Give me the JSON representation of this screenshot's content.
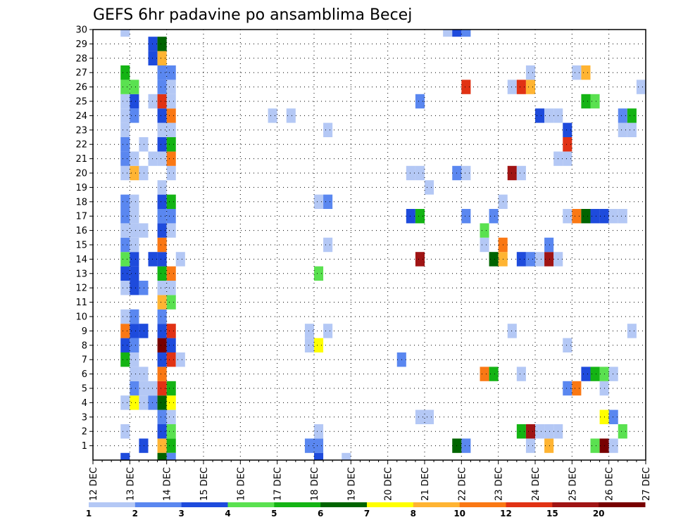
{
  "chart_data": {
    "type": "heatmap",
    "title": "GEFS 6hr padavine po ansamblima Becej",
    "xlabel": "",
    "ylabel": "",
    "x_start": "12 DEC",
    "x_end": "27 DEC",
    "x_ticks": [
      "12 DEC",
      "13 DEC",
      "14 DEC",
      "15 DEC",
      "16 DEC",
      "17 DEC",
      "18 DEC",
      "19 DEC",
      "20 DEC",
      "21 DEC",
      "22 DEC",
      "23 DEC",
      "24 DEC",
      "25 DEC",
      "26 DEC",
      "27 DEC"
    ],
    "y_ticks": [
      "1",
      "2",
      "3",
      "4",
      "5",
      "6",
      "7",
      "8",
      "9",
      "10",
      "11",
      "12",
      "13",
      "14",
      "15",
      "16",
      "17",
      "18",
      "19",
      "20",
      "21",
      "22",
      "23",
      "24",
      "25",
      "26",
      "27",
      "28",
      "29",
      "30"
    ],
    "ylim": [
      0,
      30
    ],
    "grid": true,
    "legend": {
      "placement": "bottom",
      "labels": [
        "1",
        "2",
        "3",
        "4",
        "5",
        "6",
        "7",
        "8",
        "10",
        "12",
        "15",
        "20"
      ],
      "colors": [
        "#b4c8f5",
        "#5a87f0",
        "#1e4bdc",
        "#5ae150",
        "#14b414",
        "#006400",
        "#ffff00",
        "#ffb432",
        "#fa7814",
        "#e13214",
        "#a01414",
        "#780000"
      ]
    },
    "cells": [
      {
        "day": 13.25,
        "member": 1,
        "level": 3
      },
      {
        "day": 13.75,
        "member": 1,
        "level": 8
      },
      {
        "day": 14,
        "member": 1,
        "level": 5
      },
      {
        "day": 17.75,
        "member": 1,
        "level": 2
      },
      {
        "day": 18,
        "member": 1,
        "level": 2
      },
      {
        "day": 21.75,
        "member": 1,
        "level": 6
      },
      {
        "day": 22,
        "member": 1,
        "level": 2
      },
      {
        "day": 23.75,
        "member": 1,
        "level": 1
      },
      {
        "day": 24.25,
        "member": 1,
        "level": 8
      },
      {
        "day": 25.5,
        "member": 1,
        "level": 4
      },
      {
        "day": 25.75,
        "member": 1,
        "level": 20
      },
      {
        "day": 26,
        "member": 1,
        "level": 1
      },
      {
        "day": 12.75,
        "member": 2,
        "level": 1
      },
      {
        "day": 13.75,
        "member": 2,
        "level": 3
      },
      {
        "day": 14,
        "member": 2,
        "level": 4
      },
      {
        "day": 18,
        "member": 2,
        "level": 1
      },
      {
        "day": 23.5,
        "member": 2,
        "level": 5
      },
      {
        "day": 23.75,
        "member": 2,
        "level": 15
      },
      {
        "day": 24,
        "member": 2,
        "level": 1
      },
      {
        "day": 24.25,
        "member": 2,
        "level": 1
      },
      {
        "day": 24.5,
        "member": 2,
        "level": 1
      },
      {
        "day": 26.25,
        "member": 2,
        "level": 4
      },
      {
        "day": 13.75,
        "member": 3,
        "level": 2
      },
      {
        "day": 14,
        "member": 3,
        "level": 1
      },
      {
        "day": 20.75,
        "member": 3,
        "level": 1
      },
      {
        "day": 21,
        "member": 3,
        "level": 1
      },
      {
        "day": 25.75,
        "member": 3,
        "level": 7
      },
      {
        "day": 26,
        "member": 3,
        "level": 2
      },
      {
        "day": 12.75,
        "member": 4,
        "level": 1
      },
      {
        "day": 13,
        "member": 4,
        "level": 7
      },
      {
        "day": 13.25,
        "member": 4,
        "level": 1
      },
      {
        "day": 13.5,
        "member": 4,
        "level": 2
      },
      {
        "day": 13.75,
        "member": 4,
        "level": 6
      },
      {
        "day": 14,
        "member": 4,
        "level": 7
      },
      {
        "day": 13,
        "member": 5,
        "level": 2
      },
      {
        "day": 13.25,
        "member": 5,
        "level": 1
      },
      {
        "day": 13.5,
        "member": 5,
        "level": 1
      },
      {
        "day": 13.75,
        "member": 5,
        "level": 12
      },
      {
        "day": 14,
        "member": 5,
        "level": 5
      },
      {
        "day": 24.75,
        "member": 5,
        "level": 2
      },
      {
        "day": 25,
        "member": 5,
        "level": 10
      },
      {
        "day": 25.75,
        "member": 5,
        "level": 1
      },
      {
        "day": 13,
        "member": 6,
        "level": 1
      },
      {
        "day": 13.25,
        "member": 6,
        "level": 1
      },
      {
        "day": 13.75,
        "member": 6,
        "level": 10
      },
      {
        "day": 22.5,
        "member": 6,
        "level": 10
      },
      {
        "day": 22.75,
        "member": 6,
        "level": 5
      },
      {
        "day": 23.5,
        "member": 6,
        "level": 1
      },
      {
        "day": 25.25,
        "member": 6,
        "level": 3
      },
      {
        "day": 25.5,
        "member": 6,
        "level": 5
      },
      {
        "day": 25.75,
        "member": 6,
        "level": 4
      },
      {
        "day": 26,
        "member": 6,
        "level": 1
      },
      {
        "day": 12.75,
        "member": 7,
        "level": 5
      },
      {
        "day": 13,
        "member": 7,
        "level": 1
      },
      {
        "day": 13.75,
        "member": 7,
        "level": 3
      },
      {
        "day": 14,
        "member": 7,
        "level": 12
      },
      {
        "day": 14.25,
        "member": 7,
        "level": 1
      },
      {
        "day": 20.25,
        "member": 7,
        "level": 2
      },
      {
        "day": 12.75,
        "member": 8,
        "level": 3
      },
      {
        "day": 13,
        "member": 8,
        "level": 2
      },
      {
        "day": 13.75,
        "member": 8,
        "level": 20
      },
      {
        "day": 14,
        "member": 8,
        "level": 3
      },
      {
        "day": 17.75,
        "member": 8,
        "level": 1
      },
      {
        "day": 18,
        "member": 8,
        "level": 7
      },
      {
        "day": 24.75,
        "member": 8,
        "level": 1
      },
      {
        "day": 12.75,
        "member": 9,
        "level": 10
      },
      {
        "day": 13,
        "member": 9,
        "level": 3
      },
      {
        "day": 13.25,
        "member": 9,
        "level": 3
      },
      {
        "day": 13.75,
        "member": 9,
        "level": 3
      },
      {
        "day": 14,
        "member": 9,
        "level": 12
      },
      {
        "day": 17.75,
        "member": 9,
        "level": 1
      },
      {
        "day": 18.25,
        "member": 9,
        "level": 1
      },
      {
        "day": 23.25,
        "member": 9,
        "level": 1
      },
      {
        "day": 26.5,
        "member": 9,
        "level": 1
      },
      {
        "day": 12.75,
        "member": 10,
        "level": 1
      },
      {
        "day": 13,
        "member": 10,
        "level": 2
      },
      {
        "day": 13.75,
        "member": 10,
        "level": 2
      },
      {
        "day": 13.75,
        "member": 11,
        "level": 8
      },
      {
        "day": 14,
        "member": 11,
        "level": 4
      },
      {
        "day": 12.75,
        "member": 12,
        "level": 1
      },
      {
        "day": 13,
        "member": 12,
        "level": 3
      },
      {
        "day": 13.25,
        "member": 12,
        "level": 2
      },
      {
        "day": 13.75,
        "member": 12,
        "level": 1
      },
      {
        "day": 14,
        "member": 12,
        "level": 1
      },
      {
        "day": 12.75,
        "member": 13,
        "level": 3
      },
      {
        "day": 13,
        "member": 13,
        "level": 3
      },
      {
        "day": 13.75,
        "member": 13,
        "level": 5
      },
      {
        "day": 14,
        "member": 13,
        "level": 10
      },
      {
        "day": 18,
        "member": 13,
        "level": 4
      },
      {
        "day": 12.75,
        "member": 14,
        "level": 4
      },
      {
        "day": 13,
        "member": 14,
        "level": 3
      },
      {
        "day": 13.5,
        "member": 14,
        "level": 3
      },
      {
        "day": 13.75,
        "member": 14,
        "level": 3
      },
      {
        "day": 14.25,
        "member": 14,
        "level": 1
      },
      {
        "day": 20.75,
        "member": 14,
        "level": 15
      },
      {
        "day": 22.75,
        "member": 14,
        "level": 6
      },
      {
        "day": 23,
        "member": 14,
        "level": 8
      },
      {
        "day": 23.5,
        "member": 14,
        "level": 3
      },
      {
        "day": 23.75,
        "member": 14,
        "level": 2
      },
      {
        "day": 24,
        "member": 14,
        "level": 1
      },
      {
        "day": 24.25,
        "member": 14,
        "level": 15
      },
      {
        "day": 24.5,
        "member": 14,
        "level": 1
      },
      {
        "day": 12.75,
        "member": 15,
        "level": 2
      },
      {
        "day": 13,
        "member": 15,
        "level": 1
      },
      {
        "day": 13.75,
        "member": 15,
        "level": 10
      },
      {
        "day": 18.25,
        "member": 15,
        "level": 1
      },
      {
        "day": 22.5,
        "member": 15,
        "level": 1
      },
      {
        "day": 23,
        "member": 15,
        "level": 10
      },
      {
        "day": 24.25,
        "member": 15,
        "level": 2
      },
      {
        "day": 12.75,
        "member": 16,
        "level": 1
      },
      {
        "day": 13,
        "member": 16,
        "level": 1
      },
      {
        "day": 13.25,
        "member": 16,
        "level": 1
      },
      {
        "day": 13.75,
        "member": 16,
        "level": 3
      },
      {
        "day": 14,
        "member": 16,
        "level": 1
      },
      {
        "day": 22.5,
        "member": 16,
        "level": 4
      },
      {
        "day": 12.75,
        "member": 17,
        "level": 2
      },
      {
        "day": 13,
        "member": 17,
        "level": 1
      },
      {
        "day": 13.75,
        "member": 17,
        "level": 2
      },
      {
        "day": 14,
        "member": 17,
        "level": 2
      },
      {
        "day": 20.5,
        "member": 17,
        "level": 3
      },
      {
        "day": 20.75,
        "member": 17,
        "level": 5
      },
      {
        "day": 22,
        "member": 17,
        "level": 2
      },
      {
        "day": 22.75,
        "member": 17,
        "level": 2
      },
      {
        "day": 24.75,
        "member": 17,
        "level": 1
      },
      {
        "day": 25,
        "member": 17,
        "level": 10
      },
      {
        "day": 25.25,
        "member": 17,
        "level": 6
      },
      {
        "day": 25.5,
        "member": 17,
        "level": 3
      },
      {
        "day": 25.75,
        "member": 17,
        "level": 3
      },
      {
        "day": 26,
        "member": 17,
        "level": 1
      },
      {
        "day": 26.25,
        "member": 17,
        "level": 1
      },
      {
        "day": 12.75,
        "member": 18,
        "level": 2
      },
      {
        "day": 13,
        "member": 18,
        "level": 1
      },
      {
        "day": 13.75,
        "member": 18,
        "level": 3
      },
      {
        "day": 14,
        "member": 18,
        "level": 5
      },
      {
        "day": 18,
        "member": 18,
        "level": 1
      },
      {
        "day": 18.25,
        "member": 18,
        "level": 2
      },
      {
        "day": 23,
        "member": 18,
        "level": 1
      },
      {
        "day": 13.75,
        "member": 19,
        "level": 1
      },
      {
        "day": 21,
        "member": 19,
        "level": 1
      },
      {
        "day": 12.75,
        "member": 20,
        "level": 1
      },
      {
        "day": 13,
        "member": 20,
        "level": 8
      },
      {
        "day": 13.25,
        "member": 20,
        "level": 1
      },
      {
        "day": 14,
        "member": 20,
        "level": 1
      },
      {
        "day": 20.5,
        "member": 20,
        "level": 1
      },
      {
        "day": 20.75,
        "member": 20,
        "level": 1
      },
      {
        "day": 21.75,
        "member": 20,
        "level": 2
      },
      {
        "day": 22,
        "member": 20,
        "level": 1
      },
      {
        "day": 23.25,
        "member": 20,
        "level": 15
      },
      {
        "day": 23.5,
        "member": 20,
        "level": 1
      },
      {
        "day": 12.75,
        "member": 21,
        "level": 2
      },
      {
        "day": 13,
        "member": 21,
        "level": 1
      },
      {
        "day": 13.5,
        "member": 21,
        "level": 1
      },
      {
        "day": 13.75,
        "member": 21,
        "level": 1
      },
      {
        "day": 14,
        "member": 21,
        "level": 10
      },
      {
        "day": 24.5,
        "member": 21,
        "level": 1
      },
      {
        "day": 24.75,
        "member": 21,
        "level": 1
      },
      {
        "day": 12.75,
        "member": 22,
        "level": 2
      },
      {
        "day": 13.25,
        "member": 22,
        "level": 1
      },
      {
        "day": 13.75,
        "member": 22,
        "level": 3
      },
      {
        "day": 14,
        "member": 22,
        "level": 5
      },
      {
        "day": 24.75,
        "member": 22,
        "level": 12
      },
      {
        "day": 12.75,
        "member": 23,
        "level": 1
      },
      {
        "day": 13.75,
        "member": 23,
        "level": 1
      },
      {
        "day": 14,
        "member": 23,
        "level": 1
      },
      {
        "day": 18.25,
        "member": 23,
        "level": 1
      },
      {
        "day": 24.75,
        "member": 23,
        "level": 3
      },
      {
        "day": 26.25,
        "member": 23,
        "level": 1
      },
      {
        "day": 26.5,
        "member": 23,
        "level": 1
      },
      {
        "day": 12.75,
        "member": 24,
        "level": 1
      },
      {
        "day": 13,
        "member": 24,
        "level": 2
      },
      {
        "day": 13.75,
        "member": 24,
        "level": 3
      },
      {
        "day": 14,
        "member": 24,
        "level": 10
      },
      {
        "day": 16.75,
        "member": 24,
        "level": 1
      },
      {
        "day": 17.25,
        "member": 24,
        "level": 1
      },
      {
        "day": 24,
        "member": 24,
        "level": 3
      },
      {
        "day": 24.25,
        "member": 24,
        "level": 1
      },
      {
        "day": 24.5,
        "member": 24,
        "level": 1
      },
      {
        "day": 26.25,
        "member": 24,
        "level": 2
      },
      {
        "day": 26.5,
        "member": 24,
        "level": 5
      },
      {
        "day": 12.75,
        "member": 25,
        "level": 1
      },
      {
        "day": 13,
        "member": 25,
        "level": 3
      },
      {
        "day": 13.5,
        "member": 25,
        "level": 1
      },
      {
        "day": 13.75,
        "member": 25,
        "level": 12
      },
      {
        "day": 14,
        "member": 25,
        "level": 1
      },
      {
        "day": 20.75,
        "member": 25,
        "level": 2
      },
      {
        "day": 25.25,
        "member": 25,
        "level": 5
      },
      {
        "day": 25.5,
        "member": 25,
        "level": 4
      },
      {
        "day": 12.75,
        "member": 26,
        "level": 4
      },
      {
        "day": 13,
        "member": 26,
        "level": 4
      },
      {
        "day": 13.75,
        "member": 26,
        "level": 2
      },
      {
        "day": 14,
        "member": 26,
        "level": 1
      },
      {
        "day": 22,
        "member": 26,
        "level": 12
      },
      {
        "day": 23.25,
        "member": 26,
        "level": 1
      },
      {
        "day": 23.5,
        "member": 26,
        "level": 12
      },
      {
        "day": 23.75,
        "member": 26,
        "level": 8
      },
      {
        "day": 26.75,
        "member": 26,
        "level": 1
      },
      {
        "day": 12.75,
        "member": 27,
        "level": 5
      },
      {
        "day": 13.75,
        "member": 27,
        "level": 2
      },
      {
        "day": 14,
        "member": 27,
        "level": 2
      },
      {
        "day": 23.75,
        "member": 27,
        "level": 1
      },
      {
        "day": 25,
        "member": 27,
        "level": 1
      },
      {
        "day": 25.25,
        "member": 27,
        "level": 8
      },
      {
        "day": 13.5,
        "member": 28,
        "level": 3
      },
      {
        "day": 13.75,
        "member": 28,
        "level": 8
      },
      {
        "day": 13.5,
        "member": 29,
        "level": 3
      },
      {
        "day": 13.75,
        "member": 29,
        "level": 6
      },
      {
        "day": 12.75,
        "member": 30,
        "level": 1
      },
      {
        "day": 21.5,
        "member": 30,
        "level": 1
      },
      {
        "day": 21.75,
        "member": 30,
        "level": 3
      },
      {
        "day": 22,
        "member": 30,
        "level": 2
      },
      {
        "day": 12.75,
        "member": 0,
        "level": 3
      },
      {
        "day": 13.75,
        "member": 0,
        "level": 6
      },
      {
        "day": 14,
        "member": 0,
        "level": 2
      },
      {
        "day": 18,
        "member": 0,
        "level": 3
      },
      {
        "day": 18.75,
        "member": 0,
        "level": 1
      }
    ]
  }
}
